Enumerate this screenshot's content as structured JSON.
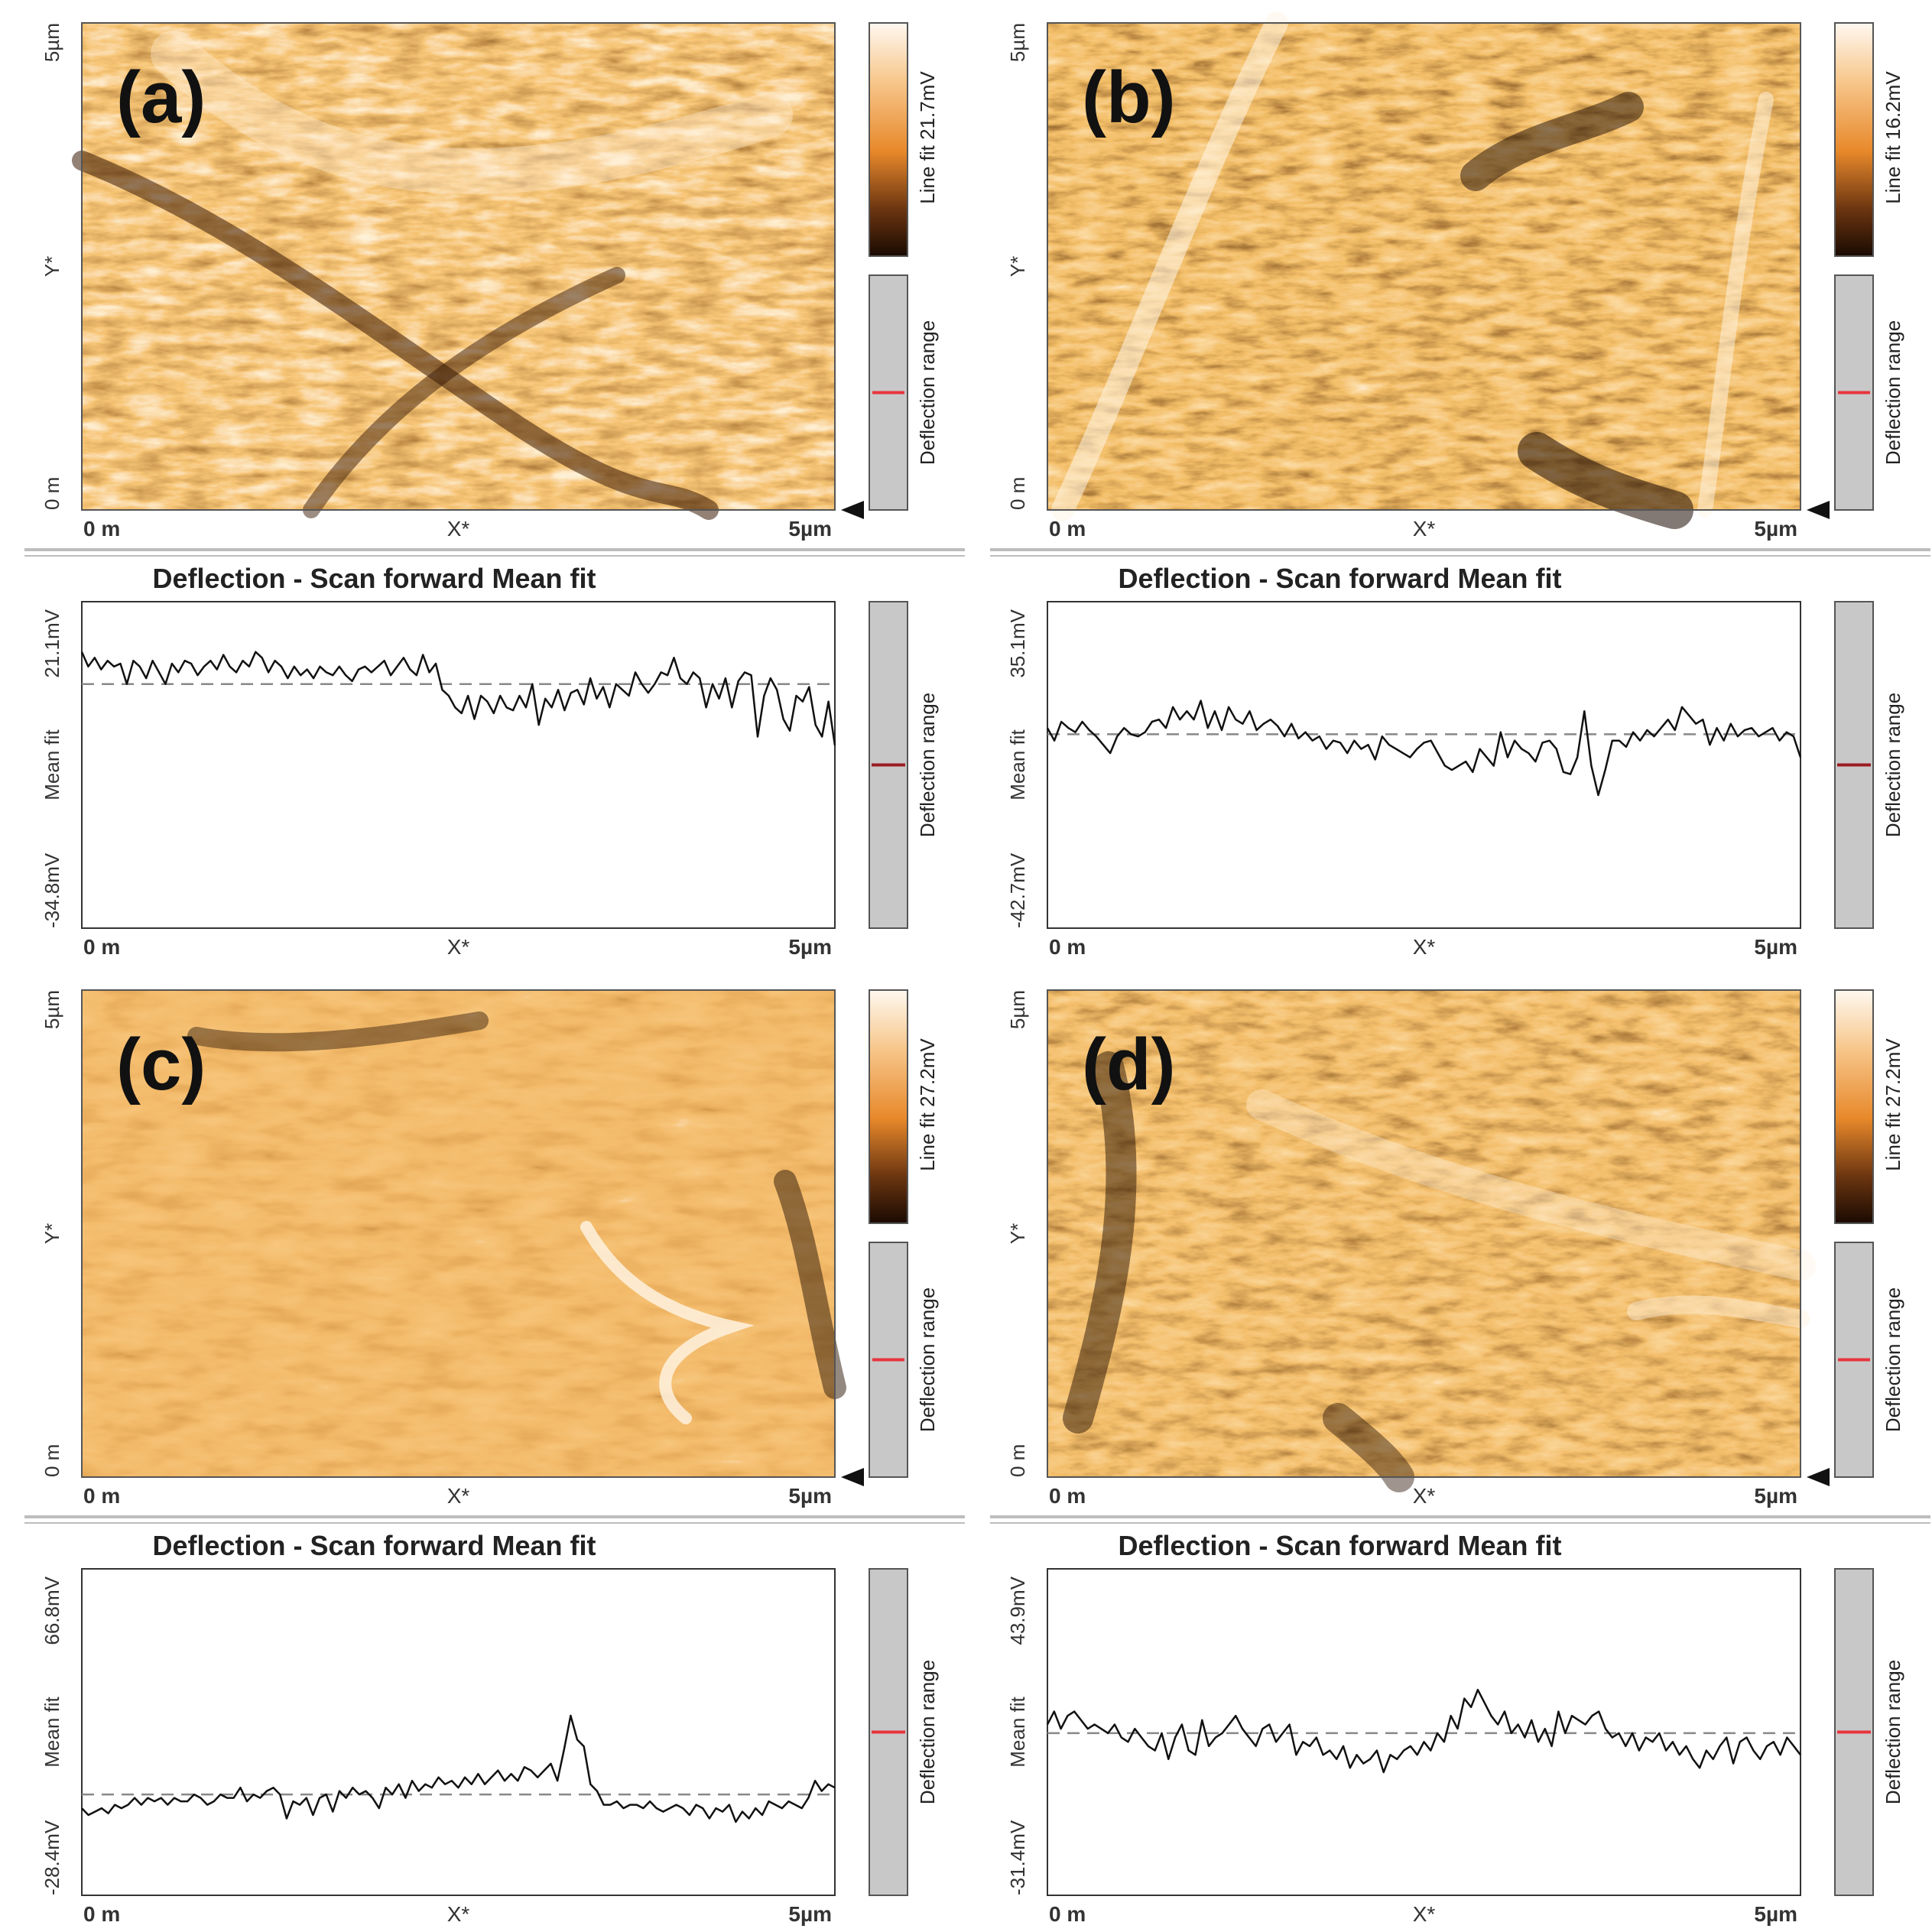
{
  "figure": {
    "palette": {
      "orange": "#e8892b",
      "light": "#fbe3c2",
      "dark": "#2a1404",
      "gray": "#c8c8c8",
      "marker": "#e8343c",
      "rule": "#bdbdbd"
    }
  },
  "chart_data": [
    {
      "type": "heatmap",
      "panel_label": "(a)",
      "x_tick_start": "0 m",
      "x_tick_end": "5µm",
      "x_label": "X*",
      "y_tick_start": "0 m",
      "y_tick_end": "5µm",
      "y_label": "Y*",
      "colorbar_label": "Line fit 21.7mV",
      "range_bar_label": "Deflection range",
      "range_marker_fraction": 0.5
    },
    {
      "type": "heatmap",
      "panel_label": "(b)",
      "x_tick_start": "0 m",
      "x_tick_end": "5µm",
      "x_label": "X*",
      "y_tick_start": "0 m",
      "y_tick_end": "5µm",
      "y_label": "Y*",
      "colorbar_label": "Line fit 16.2mV",
      "range_bar_label": "Deflection range",
      "range_marker_fraction": 0.5
    },
    {
      "type": "line",
      "title": "Deflection - Scan forward   Mean fit",
      "x_tick_start": "0 m",
      "x_tick_end": "5µm",
      "x_label": "X*",
      "y_tick_top": "21.1mV",
      "y_tick_bottom": "-34.8mV",
      "y_label": "Mean fit",
      "ylim": [
        -34.8,
        21.1
      ],
      "mean_level": 7,
      "range_bar_label": "Deflection range",
      "range_marker_fraction": 0.5,
      "values": [
        12.5,
        10,
        11.5,
        9.5,
        11,
        10,
        10.5,
        7,
        11,
        10,
        8,
        11,
        9,
        7,
        10.5,
        9,
        11,
        10.5,
        8.5,
        10,
        11,
        9.5,
        12,
        10,
        9,
        11,
        10,
        12.5,
        11.5,
        9,
        11,
        10,
        8,
        10,
        8.5,
        9.5,
        8,
        10,
        9,
        8.5,
        10,
        8.5,
        7.5,
        9.5,
        10,
        9,
        10,
        11,
        8.5,
        10,
        11.5,
        9.5,
        8.5,
        12,
        9,
        10.5,
        6,
        5,
        3,
        2,
        5,
        1,
        5,
        4,
        2,
        5,
        3,
        2.5,
        5,
        3,
        7,
        0,
        4.5,
        3,
        6,
        2.5,
        5.5,
        6,
        3.5,
        8,
        4.5,
        6.5,
        3,
        7,
        6,
        5,
        9,
        7,
        5.5,
        7,
        9,
        8.5,
        11.5,
        8,
        7,
        9,
        8,
        3,
        7,
        4.5,
        8,
        3,
        7.5,
        9,
        8.5,
        -2,
        5,
        8,
        6,
        1,
        -1,
        5,
        4,
        6.5,
        0,
        -2,
        4,
        -3.5
      ]
    },
    {
      "type": "line",
      "title": "Deflection - Scan forward   Mean fit",
      "x_tick_start": "0 m",
      "x_tick_end": "5µm",
      "x_label": "X*",
      "y_tick_top": "35.1mV",
      "y_tick_bottom": "-42.7mV",
      "y_label": "Mean fit",
      "ylim": [
        -42.7,
        35.1
      ],
      "mean_level": 3.5,
      "range_bar_label": "Deflection range",
      "range_marker_fraction": 0.5,
      "values": [
        5,
        2,
        6.5,
        5,
        4,
        6.5,
        4.5,
        3,
        1,
        -1,
        3,
        5,
        3.5,
        3,
        4,
        6.5,
        7,
        5,
        10,
        7,
        9,
        7,
        11.5,
        5,
        9,
        4.5,
        10,
        7,
        6,
        9,
        4.5,
        6,
        7,
        5.5,
        3,
        6,
        2.5,
        4,
        2,
        3,
        0,
        2,
        1.5,
        -1,
        2,
        0,
        1,
        -2.5,
        3,
        1,
        0,
        -1,
        -2,
        0,
        1.5,
        2,
        -1,
        -4,
        -5,
        -4,
        -3,
        -5.5,
        0,
        -2,
        -4,
        4,
        -2,
        2,
        0,
        -1,
        -3,
        1.5,
        2,
        0,
        -5.5,
        -6,
        -2,
        9,
        -4,
        -11,
        -5,
        2,
        2,
        0.5,
        4,
        2,
        4.5,
        3,
        5,
        7,
        4.5,
        10,
        8,
        6,
        7,
        1,
        5,
        2,
        6,
        3,
        4.5,
        5,
        3,
        4,
        5,
        2,
        4,
        3,
        -2
      ]
    },
    {
      "type": "heatmap",
      "panel_label": "(c)",
      "x_tick_start": "0 m",
      "x_tick_end": "5µm",
      "x_label": "X*",
      "y_tick_start": "0 m",
      "y_tick_end": "5µm",
      "y_label": "Y*",
      "colorbar_label": "Line fit 27.2mV",
      "range_bar_label": "Deflection range",
      "range_marker_fraction": 0.5
    },
    {
      "type": "heatmap",
      "panel_label": "(d)",
      "x_tick_start": "0 m",
      "x_tick_end": "5µm",
      "x_label": "X*",
      "y_tick_start": "0 m",
      "y_tick_end": "5µm",
      "y_label": "Y*",
      "colorbar_label": "Line fit 27.2mV",
      "range_bar_label": "Deflection range",
      "range_marker_fraction": 0.5
    },
    {
      "type": "line",
      "title": "Deflection - Scan forward   Mean fit",
      "x_tick_start": "0 m",
      "x_tick_end": "5µm",
      "x_label": "X*",
      "y_tick_top": "66.8mV",
      "y_tick_bottom": "-28.4mV",
      "y_label": "Mean fit",
      "ylim": [
        -28.4,
        66.8
      ],
      "mean_level": 1,
      "range_bar_label": "Deflection range",
      "range_marker_fraction": 0.5,
      "values": [
        -3,
        -5,
        -4,
        -3,
        -4.5,
        -2,
        -3,
        -2,
        0,
        -2,
        0,
        -1,
        0,
        -2,
        0,
        -1,
        -1,
        1,
        0,
        -2,
        -1,
        1,
        0,
        0,
        3,
        -1,
        1,
        0,
        2,
        3,
        1,
        -6,
        -1,
        -2,
        0,
        -5,
        0,
        1,
        -4,
        2,
        0,
        3,
        1,
        2,
        0,
        -3,
        3,
        1,
        4,
        0,
        5,
        2,
        4,
        3,
        6,
        4,
        5,
        3,
        6,
        4,
        7,
        4,
        6,
        8,
        5,
        7,
        5,
        9,
        8,
        6,
        8,
        10,
        5,
        14,
        24,
        17,
        15,
        4,
        2,
        -2,
        -2,
        -1,
        -3,
        -2,
        -2,
        -3,
        -1,
        -3,
        -4,
        -3,
        -2,
        -3,
        -5,
        -2,
        -3,
        -6,
        -3,
        -4,
        -2,
        -7,
        -4,
        -6,
        -3,
        -5,
        -1,
        -2,
        -3,
        -1,
        -2,
        -3,
        0,
        5,
        2,
        4,
        3
      ]
    },
    {
      "type": "line",
      "title": "Deflection - Scan forward   Mean fit",
      "x_tick_start": "0 m",
      "x_tick_end": "5µm",
      "x_label": "X*",
      "y_tick_top": "43.9mV",
      "y_tick_bottom": "-31.4mV",
      "y_label": "Mean fit",
      "ylim": [
        -31.4,
        43.9
      ],
      "mean_level": 6,
      "range_bar_label": "Deflection range",
      "range_marker_fraction": 0.5,
      "values": [
        8,
        11,
        7,
        10,
        11,
        9,
        7,
        8,
        7,
        6,
        8,
        5,
        4,
        7,
        5,
        3,
        2,
        6,
        0,
        5,
        8,
        2,
        1,
        9,
        3,
        5,
        6,
        8,
        10,
        7,
        5,
        3,
        7,
        8,
        4,
        6,
        8,
        1,
        4,
        3,
        5,
        1,
        2,
        0,
        3,
        -2,
        1,
        -1,
        0,
        2,
        -3,
        1,
        0,
        2,
        3,
        1,
        4,
        2,
        6,
        4,
        10,
        7,
        14,
        12,
        16,
        13,
        10,
        8,
        11,
        6,
        8,
        5,
        9,
        4,
        7,
        3,
        11,
        6,
        10,
        9,
        8,
        10,
        11,
        7,
        5,
        6,
        3,
        6,
        2,
        5,
        4,
        6,
        2,
        4,
        1,
        3,
        0,
        -2,
        2,
        0,
        3,
        5,
        -1,
        4,
        5,
        2,
        0,
        3,
        4,
        1,
        5,
        3,
        1
      ]
    }
  ]
}
